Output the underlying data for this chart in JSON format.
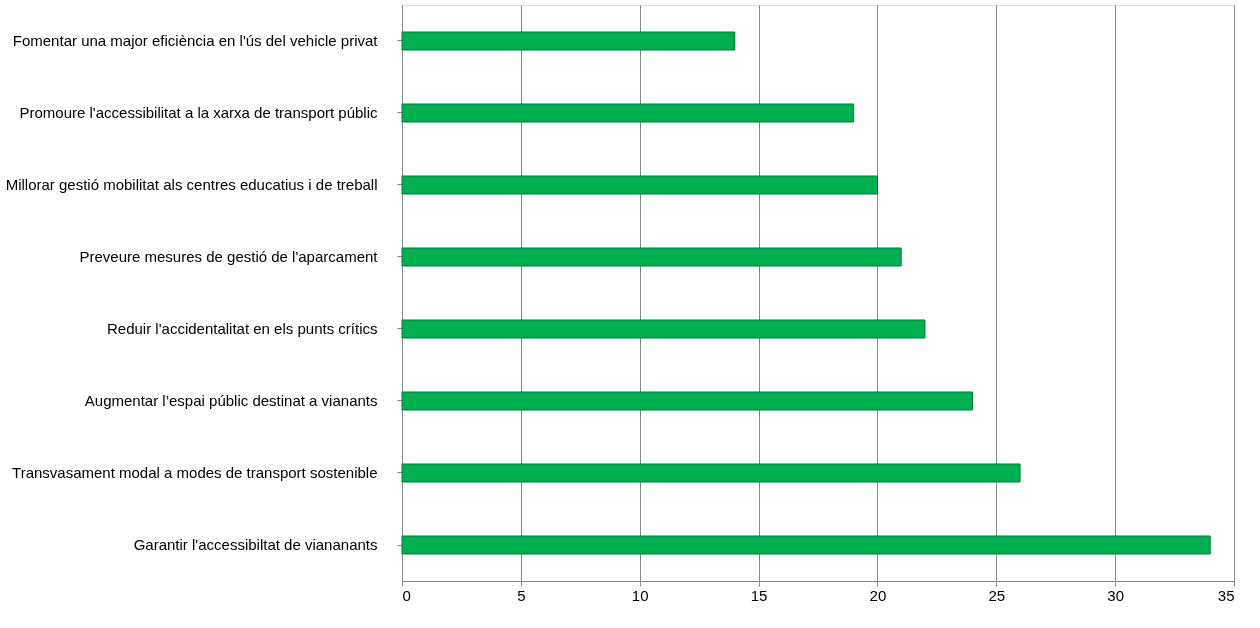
{
  "chart_data": {
    "type": "bar",
    "orientation": "horizontal",
    "categories": [
      "Fomentar una major eficiència en l'ús del vehicle privat",
      "Promoure l'accessibilitat a la xarxa de transport públic",
      "Millorar gestió mobilitat als centres educatius i de treball",
      "Preveure mesures de gestió de l'aparcament",
      "Reduir l'accidentalitat en els punts crítics",
      "Augmentar l’espai públic destinat a vianants",
      "Transvasament modal  a modes de transport sostenible",
      "Garantir l'accessibiltat de viananants"
    ],
    "values": [
      14,
      19,
      20,
      21,
      22,
      24,
      26,
      34
    ],
    "color": "#00b050",
    "xlim": [
      0,
      35
    ],
    "xticks": [
      0,
      5,
      10,
      15,
      20,
      25,
      30,
      35
    ],
    "grid": "x"
  }
}
